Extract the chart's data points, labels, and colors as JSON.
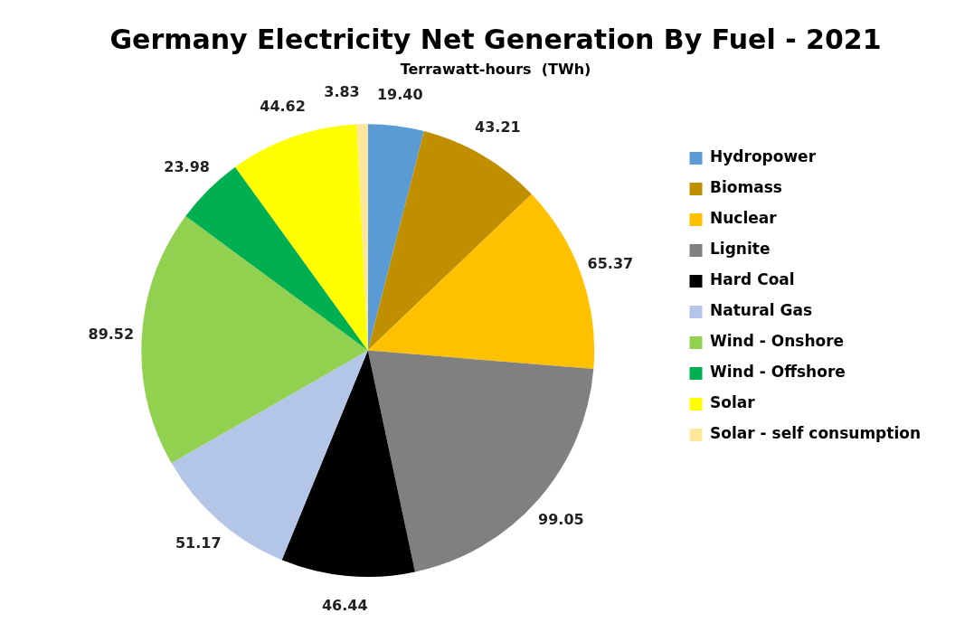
{
  "chart_data": {
    "type": "pie",
    "title": "Germany Electricity Net Generation By Fuel - 2021",
    "subtitle": "Terrawatt-hours  (TWh)",
    "categories": [
      "Hydropower",
      "Biomass",
      "Nuclear",
      "Lignite",
      "Hard Coal",
      "Natural Gas",
      "Wind - Onshore",
      "Wind - Offshore",
      "Solar",
      "Solar - self consumption"
    ],
    "values": [
      19.4,
      43.21,
      65.37,
      99.05,
      46.44,
      51.17,
      89.52,
      23.98,
      44.62,
      3.83
    ],
    "colors": [
      "#5b9bd5",
      "#bf8f00",
      "#ffc000",
      "#808080",
      "#000000",
      "#b4c6e7",
      "#92d050",
      "#00b050",
      "#ffff00",
      "#ffe699"
    ],
    "value_labels": [
      "19.40",
      "43.21",
      "65.37",
      "99.05",
      "46.44",
      "51.17",
      "89.52",
      "23.98",
      "44.62",
      "3.83"
    ],
    "legend": "right"
  }
}
